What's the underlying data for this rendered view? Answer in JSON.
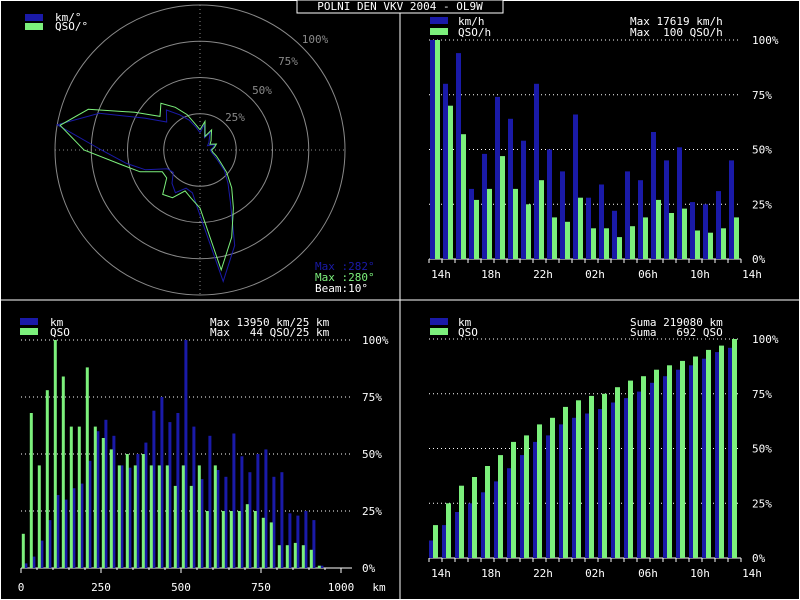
{
  "title": "POLNI DEN VKV 2004 - OL9W",
  "colors": {
    "series1": "#1a1aa8",
    "series2": "#7cf07c",
    "text": "#ffffff",
    "frame": "#ffffff",
    "grid": "#8a8a8a"
  },
  "polar": {
    "legend": [
      "km/°",
      "QSO/°"
    ],
    "ring_labels": [
      "25%",
      "50%",
      "75%",
      "100%"
    ],
    "stat1": "Max :282°",
    "stat2": "Max :280°",
    "stat3": "Beam:10°"
  },
  "hourly": {
    "legend": [
      "km/h",
      "QSO/h"
    ],
    "stat1": "Max 17619 km/h",
    "stat2": "Max  100 QSO/h",
    "y_labels": [
      "100%",
      "75%",
      "50%",
      "25%",
      "0%"
    ]
  },
  "distance": {
    "legend": [
      "km",
      "QSO"
    ],
    "stat1": "Max 13950 km/25 km",
    "stat2": "Max   44 QSO/25 km",
    "y_labels": [
      "100%",
      "75%",
      "50%",
      "25%",
      "0%"
    ]
  },
  "cumulative": {
    "legend": [
      "km",
      "QSO"
    ],
    "stat1": "Suma 219080 km",
    "stat2": "Suma   692 QSO",
    "y_labels": [
      "100%",
      "75%",
      "50%",
      "25%",
      "0%"
    ]
  },
  "chart_data": [
    {
      "type": "line",
      "name": "polar",
      "note": "radial values in % of max, one per 10° beam (0° = north, clockwise)",
      "angles": [
        0,
        10,
        20,
        30,
        40,
        50,
        60,
        70,
        80,
        90,
        100,
        110,
        120,
        130,
        140,
        150,
        160,
        170,
        180,
        190,
        200,
        210,
        220,
        230,
        240,
        250,
        260,
        270,
        280,
        290,
        300,
        310,
        320,
        330,
        340,
        350
      ],
      "series": [
        {
          "name": "km/°",
          "values": [
            12,
            18,
            9,
            14,
            10,
            8,
            6,
            11,
            9,
            7,
            8,
            10,
            14,
            22,
            30,
            42,
            70,
            92,
            45,
            30,
            28,
            34,
            30,
            24,
            26,
            40,
            52,
            68,
            100,
            74,
            44,
            30,
            36,
            28,
            22,
            16
          ]
        },
        {
          "name": "QSO/°",
          "values": [
            14,
            20,
            10,
            16,
            12,
            10,
            8,
            12,
            10,
            8,
            9,
            12,
            16,
            24,
            34,
            46,
            64,
            84,
            40,
            34,
            30,
            38,
            40,
            30,
            30,
            44,
            56,
            80,
            98,
            82,
            52,
            36,
            42,
            34,
            26,
            18
          ]
        }
      ]
    },
    {
      "type": "bar",
      "name": "hourly",
      "categories": [
        "14h",
        "15h",
        "16h",
        "17h",
        "18h",
        "19h",
        "20h",
        "21h",
        "22h",
        "23h",
        "00h",
        "01h",
        "02h",
        "03h",
        "04h",
        "05h",
        "06h",
        "07h",
        "08h",
        "09h",
        "10h",
        "11h",
        "12h",
        "13h"
      ],
      "x_tick_labels": [
        "14h",
        "18h",
        "22h",
        "02h",
        "06h",
        "10h",
        "14h"
      ],
      "series": [
        {
          "name": "km/h",
          "values": [
            100,
            80,
            94,
            32,
            48,
            74,
            64,
            54,
            80,
            50,
            40,
            66,
            28,
            34,
            22,
            40,
            36,
            58,
            45,
            51,
            26,
            25,
            31,
            45
          ]
        },
        {
          "name": "QSO/h",
          "values": [
            100,
            70,
            57,
            27,
            32,
            47,
            32,
            25,
            36,
            19,
            17,
            28,
            14,
            14,
            10,
            15,
            19,
            27,
            21,
            23,
            13,
            12,
            14,
            19
          ]
        }
      ],
      "ylim": [
        0,
        100
      ]
    },
    {
      "type": "bar",
      "name": "distance",
      "categories": [
        0,
        25,
        50,
        75,
        100,
        125,
        150,
        175,
        200,
        225,
        250,
        275,
        300,
        325,
        350,
        375,
        400,
        425,
        450,
        475,
        500,
        525,
        550,
        575,
        600,
        625,
        650,
        675,
        700,
        725,
        750,
        775,
        800,
        825,
        850,
        875,
        900,
        925
      ],
      "x_tick_labels": [
        "0",
        "250",
        "500",
        "750",
        "1000",
        "km"
      ],
      "xlim": [
        0,
        1000
      ],
      "series": [
        {
          "name": "km",
          "values": [
            2,
            5,
            12,
            21,
            32,
            30,
            35,
            37,
            47,
            60,
            65,
            58,
            45,
            44,
            50,
            55,
            69,
            75,
            64,
            68,
            100,
            62,
            39,
            58,
            43,
            40,
            59,
            49,
            42,
            50,
            52,
            40,
            42,
            24,
            23,
            25,
            21,
            1
          ]
        },
        {
          "name": "QSO",
          "values": [
            15,
            68,
            45,
            78,
            100,
            84,
            62,
            62,
            88,
            62,
            57,
            52,
            45,
            50,
            45,
            50,
            45,
            45,
            45,
            36,
            45,
            36,
            45,
            25,
            45,
            25,
            25,
            25,
            28,
            25,
            22,
            20,
            10,
            10,
            11,
            10,
            8,
            1
          ]
        }
      ],
      "ylim": [
        0,
        100
      ]
    },
    {
      "type": "bar",
      "name": "cumulative",
      "categories": [
        "14h",
        "15h",
        "16h",
        "17h",
        "18h",
        "19h",
        "20h",
        "21h",
        "22h",
        "23h",
        "00h",
        "01h",
        "02h",
        "03h",
        "04h",
        "05h",
        "06h",
        "07h",
        "08h",
        "09h",
        "10h",
        "11h",
        "12h",
        "13h"
      ],
      "x_tick_labels": [
        "14h",
        "18h",
        "22h",
        "02h",
        "06h",
        "10h",
        "14h"
      ],
      "series": [
        {
          "name": "km",
          "values": [
            8,
            15,
            21,
            25,
            30,
            35,
            41,
            47,
            53,
            56,
            61,
            64,
            66,
            68,
            71,
            73,
            76,
            80,
            83,
            86,
            88,
            91,
            94,
            96
          ]
        },
        {
          "name": "QSO",
          "values": [
            15,
            25,
            33,
            37,
            42,
            47,
            53,
            56,
            61,
            64,
            69,
            72,
            74,
            75,
            78,
            81,
            83,
            86,
            88,
            90,
            92,
            95,
            97,
            100
          ]
        }
      ],
      "ylim": [
        0,
        100
      ]
    }
  ]
}
